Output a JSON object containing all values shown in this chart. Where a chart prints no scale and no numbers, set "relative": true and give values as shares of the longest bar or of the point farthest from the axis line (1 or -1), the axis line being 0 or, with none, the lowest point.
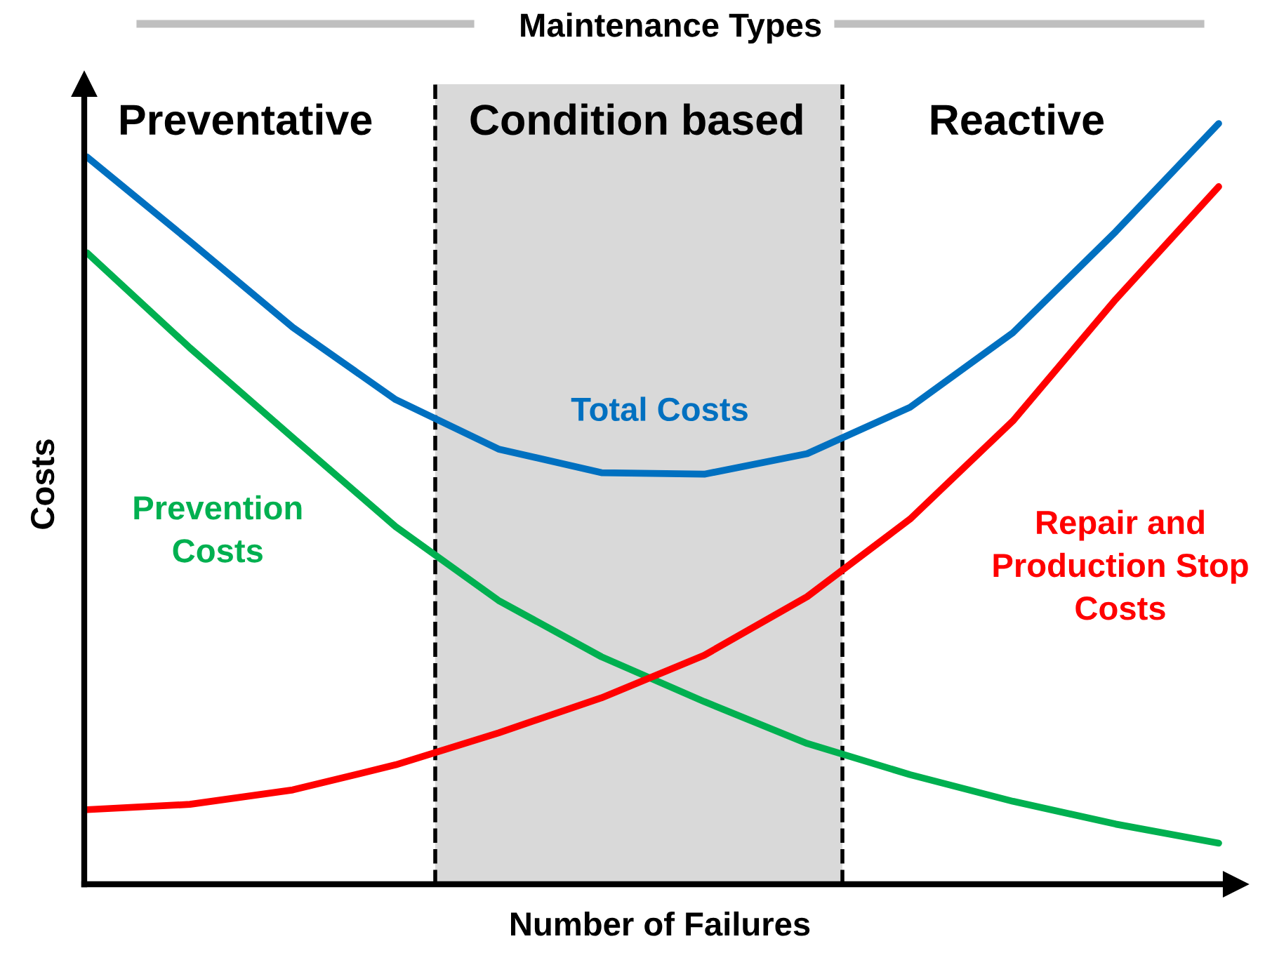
{
  "chart_data": {
    "type": "line",
    "relative": true,
    "title": "Maintenance Types",
    "xlabel": "Number of Failures",
    "ylabel": "Costs",
    "categories": [
      null,
      null,
      null,
      null,
      null,
      null,
      null,
      null,
      null,
      null,
      null,
      null
    ],
    "series": [
      {
        "name": "Total Costs",
        "color": "#0070c0",
        "values": [
          0.956,
          0.845,
          0.732,
          0.637,
          0.572,
          0.541,
          0.539,
          0.566,
          0.627,
          0.725,
          0.858,
          1.0
        ]
      },
      {
        "name": "Prevention\nCosts",
        "color": "#00b050",
        "values": [
          0.83,
          0.705,
          0.587,
          0.47,
          0.373,
          0.299,
          0.24,
          0.185,
          0.144,
          0.109,
          0.079,
          0.054
        ]
      },
      {
        "name": "Repair and\nProduction Stop\nCosts",
        "color": "#ff0000",
        "values": [
          0.098,
          0.105,
          0.124,
          0.157,
          0.199,
          0.245,
          0.301,
          0.378,
          0.48,
          0.609,
          0.769,
          0.917
        ]
      }
    ],
    "annotations": [
      "Preventative",
      "Condition based",
      "Reactive"
    ],
    "legend": false,
    "marker": "none",
    "line_style": "solid"
  }
}
